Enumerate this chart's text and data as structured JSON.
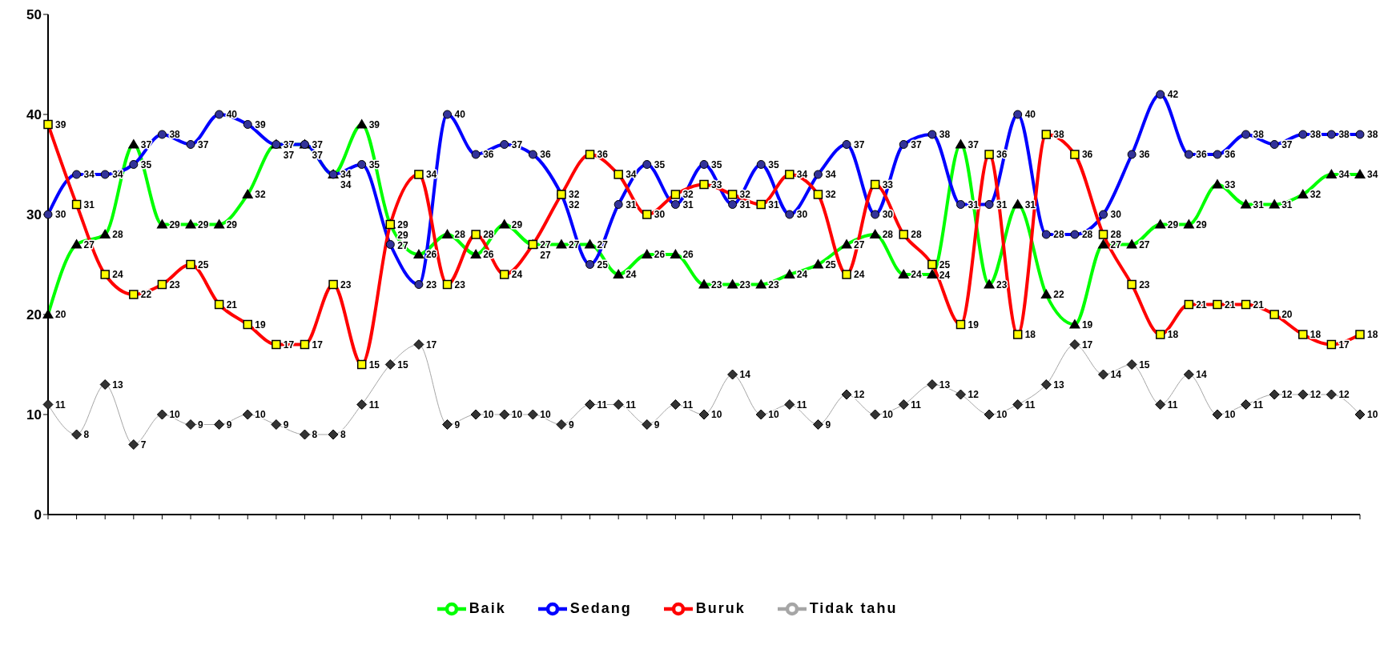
{
  "chart_data": {
    "type": "line",
    "categories": [
      null,
      null,
      null,
      null,
      null,
      null,
      null,
      null,
      null,
      null,
      null,
      null,
      null,
      null,
      null,
      null,
      null,
      null,
      null,
      null,
      null,
      null,
      null,
      null,
      null,
      null,
      null,
      null,
      null,
      null,
      null,
      null,
      null,
      null,
      null,
      null,
      null,
      null,
      null,
      null,
      null,
      null,
      null,
      null,
      null,
      null,
      null
    ],
    "series": [
      {
        "name": "Baik",
        "color": "#00ff00",
        "marker": "triangle",
        "values": [
          20,
          27,
          28,
          37,
          29,
          29,
          29,
          32,
          37,
          37,
          34,
          39,
          29,
          26,
          28,
          26,
          29,
          27,
          27,
          27,
          24,
          26,
          26,
          23,
          23,
          23,
          24,
          25,
          27,
          28,
          24,
          24,
          37,
          23,
          31,
          22,
          19,
          27,
          27,
          29,
          29,
          33,
          31,
          31,
          32,
          34,
          34
        ]
      },
      {
        "name": "Sedang",
        "color": "#0000ff",
        "marker": "circle",
        "values": [
          30,
          34,
          34,
          35,
          38,
          37,
          40,
          39,
          37,
          37,
          34,
          35,
          27,
          23,
          40,
          36,
          37,
          36,
          32,
          25,
          31,
          35,
          31,
          35,
          31,
          35,
          30,
          34,
          37,
          30,
          37,
          38,
          31,
          31,
          40,
          28,
          28,
          30,
          36,
          42,
          36,
          36,
          38,
          37,
          38,
          38,
          38
        ]
      },
      {
        "name": "Buruk",
        "color": "#ff0000",
        "marker": "square",
        "values": [
          39,
          31,
          24,
          22,
          23,
          25,
          21,
          19,
          17,
          17,
          23,
          15,
          29,
          34,
          23,
          28,
          24,
          27,
          32,
          36,
          34,
          30,
          32,
          33,
          32,
          31,
          34,
          32,
          24,
          33,
          28,
          25,
          19,
          36,
          18,
          38,
          36,
          28,
          23,
          18,
          21,
          21,
          21,
          20,
          18,
          17,
          18
        ]
      },
      {
        "name": "Tidak tahu",
        "color": "#a6a6a6",
        "marker": "diamond",
        "values": [
          11,
          8,
          13,
          7,
          10,
          9,
          9,
          10,
          9,
          8,
          8,
          11,
          15,
          17,
          9,
          10,
          10,
          10,
          9,
          11,
          11,
          9,
          11,
          10,
          14,
          10,
          11,
          9,
          12,
          10,
          11,
          13,
          12,
          10,
          11,
          13,
          17,
          14,
          15,
          11,
          14,
          10,
          11,
          12,
          12,
          12,
          10
        ]
      }
    ],
    "ylim": [
      0,
      50
    ],
    "yticks": [
      0,
      10,
      20,
      30,
      40,
      50
    ],
    "data_labels": true,
    "legend": "bottom"
  }
}
